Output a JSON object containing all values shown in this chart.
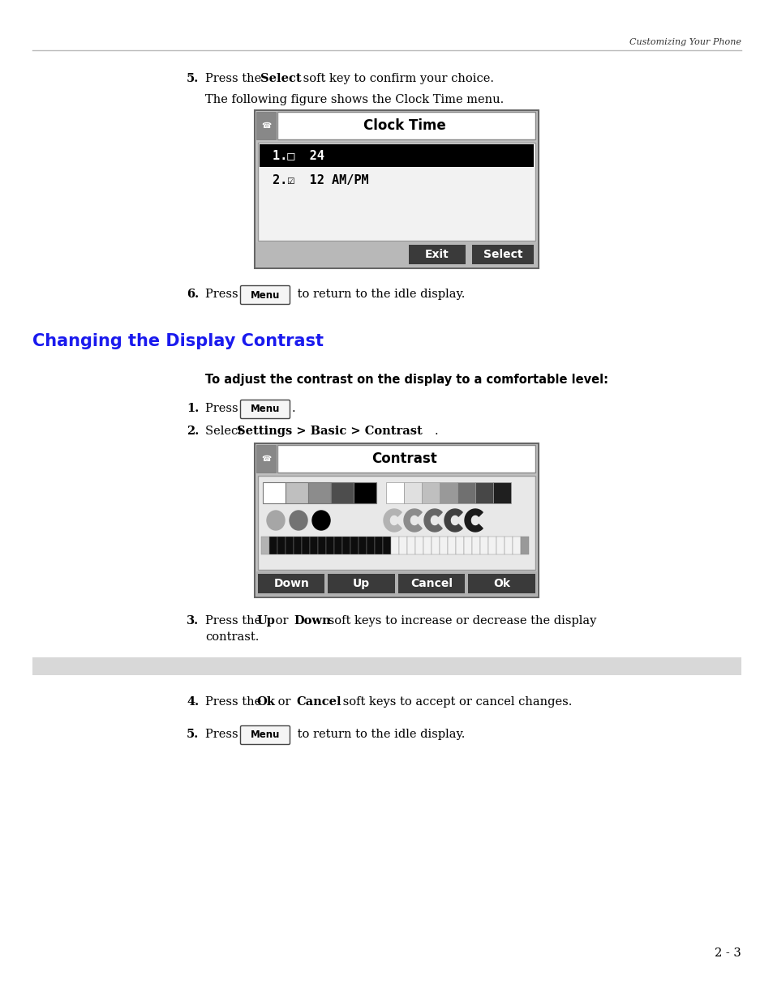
{
  "page_bg": "#ffffff",
  "header_text": "Customizing Your Phone",
  "header_line_color": "#bbbbbb",
  "section_title": "Changing the Display Contrast",
  "section_title_color": "#1a1aee",
  "clock_title": "Clock Time",
  "clock_item1": "1.□  24",
  "clock_item2": "2.☑  12 AM/PM",
  "clock_btn1": "Exit",
  "clock_btn2": "Select",
  "step6_menu_label": "Menu",
  "contrast_heading": "To adjust the contrast on the display to a comfortable level:",
  "c_step1_menu": "Menu",
  "contrast_title": "Contrast",
  "contrast_btn1": "Down",
  "contrast_btn2": "Up",
  "contrast_btn3": "Cancel",
  "contrast_btn4": "Ok",
  "step5b_menu": "Menu",
  "footer_text": "2 - 3",
  "gray_bar_color": "#d8d8d8",
  "scr_outer_color": "#aaaaaa",
  "scr_content_bg": "#e8e8e8",
  "btn_dark": "#333333",
  "title_bar_bg": "#ffffff"
}
